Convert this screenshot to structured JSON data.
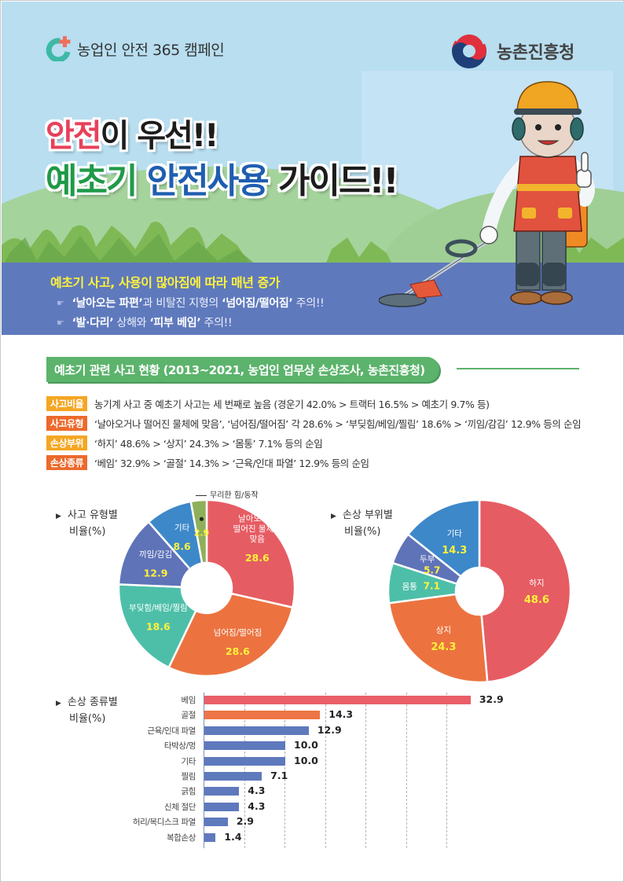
{
  "header": {
    "campaign": "농업인 안전 365 캠페인",
    "agency": "농촌진흥청"
  },
  "title": {
    "line1_red": "안전",
    "line1_black": "이 우선!!",
    "line2_green": "예초기",
    "line2_blue": "안전사용",
    "line2_black": "가이드!!"
  },
  "band": {
    "headline": "예초기 사고, 사용이 많아짐에 따라 매년 증가",
    "line1": {
      "b1": "‘날아오는 파편’",
      "t1": "과 비탈진 지형의 ",
      "b2": "‘넘어짐/떨어짐’",
      "t2": " 주의!!"
    },
    "line2": {
      "b1": "‘발·다리’",
      "t1": " 상해와 ",
      "b2": "‘피부 베임’",
      "t2": " 주의!!"
    }
  },
  "section": {
    "title": "예초기 관련 사고 현황 (2013~2021, 농업인 업무상 손상조사, 농촌진흥청)"
  },
  "facts": [
    {
      "badge": "사고비율",
      "color": "#f5a623",
      "text": "농기계 사고 중 예초기 사고는 세 번째로 높음 (경운기 42.0% > 트랙터 16.5% > 예초기 9.7% 등)"
    },
    {
      "badge": "사고유형",
      "color": "#ec6a2c",
      "text": "‘날아오거나 떨어진 물체에 맞음’, ‘넘어짐/떨어짐’ 각 28.6% > ‘부딪힘/베임/찔림’ 18.6% > ‘끼임/감김’ 12.9% 등의 순임"
    },
    {
      "badge": "손상부위",
      "color": "#f5a623",
      "text": "‘하지’ 48.6% > ‘상지’ 24.3% > ‘몸통’ 7.1% 등의 순임"
    },
    {
      "badge": "손상종류",
      "color": "#ec6a2c",
      "text": "‘베임’ 32.9% > ‘골절’ 14.3% > ‘근육/인대 파열’ 12.9% 등의 순임"
    }
  ],
  "chart_labels": {
    "accident_type": [
      "사고 유형별",
      "비율(%)"
    ],
    "injury_site": [
      "손상 부위별",
      "비율(%)"
    ],
    "injury_kind": [
      "손상 종류별",
      "비율(%)"
    ],
    "callout": "무리한 힘/동작"
  },
  "chart_data": [
    {
      "type": "pie",
      "title": "사고 유형별 비율(%)",
      "donut": true,
      "categories": [
        "날아오거나 떨어진 물체에 맞음",
        "넘어짐/떨어짐",
        "부딪힘/베임/찔림",
        "끼임/감김",
        "기타",
        "무리한 힘/동작"
      ],
      "values": [
        28.6,
        28.6,
        18.6,
        12.9,
        8.6,
        2.9
      ],
      "colors": [
        "#e65c63",
        "#ec7340",
        "#4dbfa9",
        "#5f73b8",
        "#3d88c9",
        "#8fb05a"
      ],
      "value_labels": [
        "28.6",
        "28.6",
        "18.6",
        "12.9",
        "8.6",
        "2.9"
      ],
      "label_lines": [
        [
          "날아오거나",
          "떨어진 물체에",
          "맞음"
        ],
        [
          "넘어짐/떨어짐"
        ],
        [
          "부딪힘/베임/찔림"
        ],
        [
          "끼임/감김"
        ],
        [
          "기타"
        ],
        [
          ""
        ]
      ]
    },
    {
      "type": "pie",
      "title": "손상 부위별 비율(%)",
      "donut": true,
      "categories": [
        "하지",
        "상지",
        "몸통",
        "두부",
        "기타"
      ],
      "values": [
        48.6,
        24.3,
        7.1,
        5.7,
        14.3
      ],
      "colors": [
        "#e65c63",
        "#ec7340",
        "#4dbfa9",
        "#5f73b8",
        "#3d88c9"
      ],
      "value_labels": [
        "48.6",
        "24.3",
        "7.1",
        "5.7",
        "14.3"
      ]
    },
    {
      "type": "bar",
      "orientation": "horizontal",
      "title": "손상 종류별 비율(%)",
      "categories": [
        "베임",
        "골절",
        "근육/인대 파열",
        "타박상/멍",
        "기타",
        "찔림",
        "긁힘",
        "신체 절단",
        "허리/목디스크 파열",
        "복합손상"
      ],
      "values": [
        32.9,
        14.3,
        12.9,
        10.0,
        10.0,
        7.1,
        4.3,
        4.3,
        2.9,
        1.4
      ],
      "value_labels": [
        "32.9",
        "14.3",
        "12.9",
        "10.0",
        "10.0",
        "7.1",
        "4.3",
        "4.3",
        "2.9",
        "1.4"
      ],
      "colors": [
        "#ea5f68",
        "#ee7545",
        "#5f79bd",
        "#5f79bd",
        "#5f79bd",
        "#5f79bd",
        "#5f79bd",
        "#5f79bd",
        "#5f79bd",
        "#5f79bd"
      ],
      "grid": true,
      "xlim": [
        0,
        35
      ]
    }
  ]
}
